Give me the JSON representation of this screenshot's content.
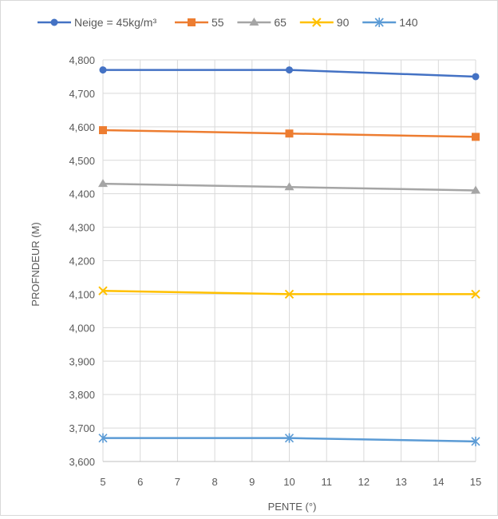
{
  "chart_data": {
    "type": "line",
    "title": "",
    "xlabel": "PENTE (°)",
    "ylabel": "PROFNDEUR (M)",
    "x": [
      5,
      10,
      15
    ],
    "x_ticks": [
      "5",
      "6",
      "7",
      "8",
      "9",
      "10",
      "11",
      "12",
      "13",
      "14",
      "15"
    ],
    "xlim": [
      5,
      15
    ],
    "y_ticks": [
      "3,600",
      "3,700",
      "3,800",
      "3,900",
      "4,000",
      "4,100",
      "4,200",
      "4,300",
      "4,400",
      "4,500",
      "4,600",
      "4,700",
      "4,800"
    ],
    "ylim": [
      3.6,
      4.8
    ],
    "grid": true,
    "legend_position": "top",
    "series": [
      {
        "name": "Neige = 45kg/m³",
        "values": [
          4.77,
          4.77,
          4.75
        ],
        "color": "#4472C4",
        "marker": "circle"
      },
      {
        "name": "55",
        "values": [
          4.59,
          4.58,
          4.57
        ],
        "color": "#ED7D31",
        "marker": "square"
      },
      {
        "name": "65",
        "values": [
          4.43,
          4.42,
          4.41
        ],
        "color": "#A5A5A5",
        "marker": "triangle"
      },
      {
        "name": "90",
        "values": [
          4.11,
          4.1,
          4.1
        ],
        "color": "#FFC000",
        "marker": "x"
      },
      {
        "name": "140",
        "values": [
          3.67,
          3.67,
          3.66
        ],
        "color": "#5B9BD5",
        "marker": "star"
      }
    ]
  }
}
